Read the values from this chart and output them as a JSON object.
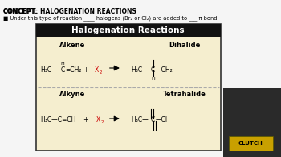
{
  "bg_color": "#f5f5f5",
  "title_text": "CONCEPT: HALOGENATION REACTIONS",
  "subtitle_text": "■ Under this type of reaction ____ halogens (Br₂ or Cl₂) are added to ___ π bond.",
  "box_title": "Halogenation Reactions",
  "box_bg": "#f5eecf",
  "box_border": "#333333",
  "box_title_bg": "#111111",
  "box_title_color": "#ffffff",
  "label_alkene": "Alkene",
  "label_dihalide": "Dihalide",
  "label_alkyne": "Alkyne",
  "label_tetrahalide": "Tetrahalide",
  "x2_color": "#cc0000"
}
